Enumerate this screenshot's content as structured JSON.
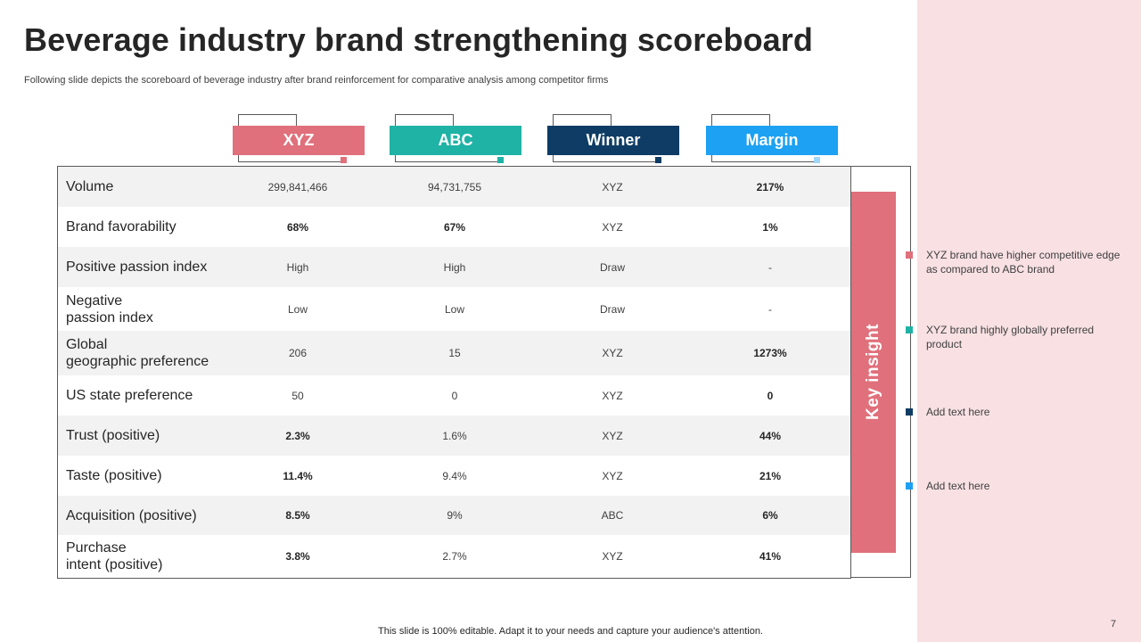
{
  "title": "Beverage industry brand strengthening scoreboard",
  "subtitle": "Following slide depicts the scoreboard of beverage industry after brand reinforcement for comparative analysis among competitor firms",
  "colors": {
    "xyz": "#e0707b",
    "abc": "#1fb3a6",
    "winner": "#0e3c64",
    "margin": "#1da1f2",
    "panel": "#f8e0e3"
  },
  "columns": [
    {
      "label": "XYZ"
    },
    {
      "label": "ABC"
    },
    {
      "label": "Winner"
    },
    {
      "label": "Margin"
    }
  ],
  "rows": [
    {
      "label": "Volume",
      "xyz": "299,841,466",
      "abc": "94,731,755",
      "winner": "XYZ",
      "margin": "217%"
    },
    {
      "label": "Brand favorability",
      "xyz": "68%",
      "abc": "67%",
      "winner": "XYZ",
      "margin": "1%"
    },
    {
      "label": "Positive passion index",
      "xyz": "High",
      "abc": "High",
      "winner": "Draw",
      "margin": "-"
    },
    {
      "label": "Negative\npassion index",
      "xyz": "Low",
      "abc": "Low",
      "winner": "Draw",
      "margin": "-"
    },
    {
      "label": "Global\ngeographic preference",
      "xyz": "206",
      "abc": "15",
      "winner": "XYZ",
      "margin": "1273%"
    },
    {
      "label": "US state preference",
      "xyz": "50",
      "abc": "0",
      "winner": "XYZ",
      "margin": "0"
    },
    {
      "label": "Trust (positive)",
      "xyz": "2.3%",
      "abc": "1.6%",
      "winner": "XYZ",
      "margin": "44%"
    },
    {
      "label": "Taste (positive)",
      "xyz": "11.4%",
      "abc": "9.4%",
      "winner": "XYZ",
      "margin": "21%"
    },
    {
      "label": "Acquisition (positive)",
      "xyz": "8.5%",
      "abc": "9%",
      "winner": "ABC",
      "margin": "6%"
    },
    {
      "label": "Purchase\nintent (positive)",
      "xyz": "3.8%",
      "abc": "2.7%",
      "winner": "XYZ",
      "margin": "41%"
    }
  ],
  "key_insight": {
    "heading": "Key insight",
    "items": [
      {
        "text": "XYZ brand have higher competitive edge as compared to ABC brand"
      },
      {
        "text": "XYZ brand highly  globally preferred product"
      },
      {
        "text": "Add text here"
      },
      {
        "text": "Add text here"
      }
    ]
  },
  "footer": "This slide is 100% editable. Adapt it to your needs and capture your audience's attention.",
  "page_number": "7"
}
